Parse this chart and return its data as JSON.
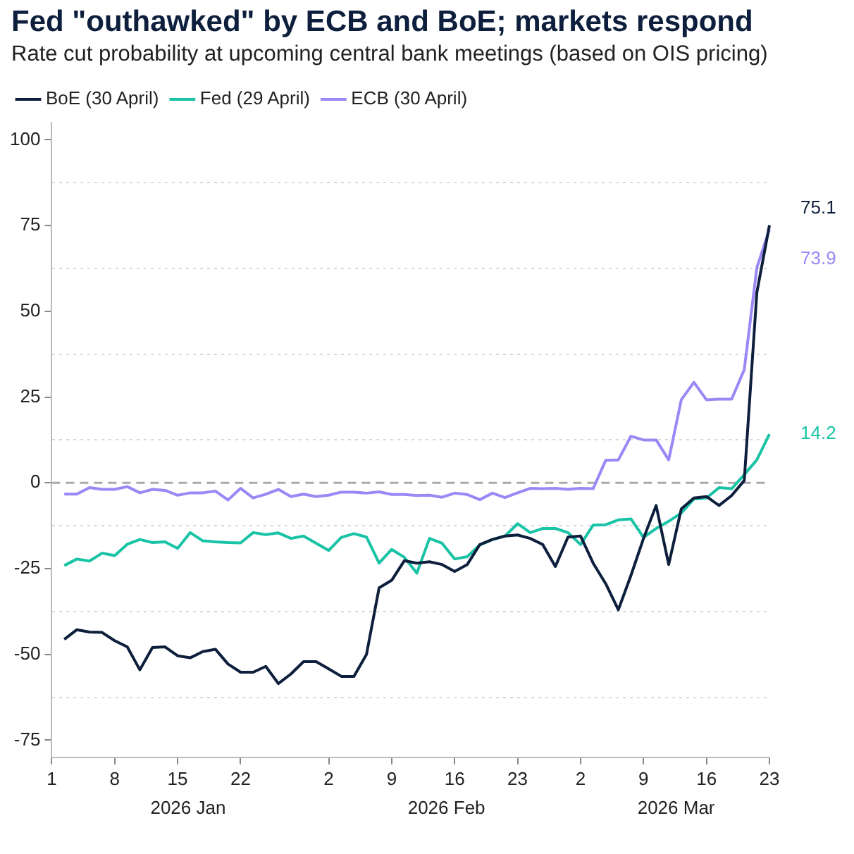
{
  "chart_data": {
    "type": "line",
    "title": "Fed \"outhawked\" by ECB and BoE; markets respond",
    "subtitle": "Rate cut probability at upcoming central bank meetings (based on OIS pricing)",
    "categories": [
      "1",
      null,
      null,
      null,
      null,
      "8",
      null,
      null,
      null,
      null,
      "15",
      null,
      null,
      null,
      null,
      "22",
      null,
      null,
      null,
      null,
      null,
      null,
      "2",
      null,
      null,
      null,
      null,
      "9",
      null,
      null,
      null,
      null,
      "16",
      null,
      null,
      null,
      null,
      "23",
      null,
      null,
      null,
      null,
      "2",
      null,
      null,
      null,
      null,
      "9",
      null,
      null,
      null,
      null,
      "16",
      null,
      null,
      null,
      null,
      "23"
    ],
    "series": [
      {
        "name": "BoE (30 April)",
        "color": "#0d1f3c",
        "values": [
          null,
          -45.6,
          -42.8,
          -43.5,
          -43.6,
          -46,
          -47.8,
          -54.5,
          -48,
          -47.8,
          -50.4,
          -51,
          -49.2,
          -48.5,
          -52.8,
          -55.2,
          -55.2,
          -53.5,
          -58.5,
          -55.7,
          -52.1,
          -52.1,
          -54.2,
          -56.4,
          -56.4,
          -50,
          -30.6,
          -28.4,
          -22.7,
          -23.4,
          -23,
          -23.8,
          -25.8,
          -23.8,
          -18,
          -16.5,
          -15.5,
          -15.2,
          -16.2,
          -18,
          -24.4,
          -15.8,
          -15.5,
          -23.4,
          -29.4,
          -37,
          -27,
          -16.2,
          -6.6,
          -23.8,
          -7.6,
          -4.4,
          -4,
          -6.6,
          -3.7,
          0.7,
          55.5,
          75.1
        ],
        "value_labels": [
          null,
          null,
          null,
          null,
          null,
          null,
          null,
          null,
          null,
          null,
          null,
          null,
          null,
          null,
          null,
          null,
          null,
          null,
          null,
          null,
          null,
          null,
          null,
          null,
          null,
          null,
          null,
          null,
          null,
          null,
          null,
          null,
          null,
          null,
          null,
          null,
          null,
          null,
          null,
          null,
          null,
          null,
          null,
          null,
          null,
          null,
          null,
          null,
          null,
          null,
          null,
          null,
          null,
          null,
          null,
          null,
          null,
          "75.1"
        ]
      },
      {
        "name": "Fed (29 April)",
        "color": "#19c3a5",
        "values": [
          null,
          -24.1,
          -22.2,
          -22.8,
          -20.5,
          -21.2,
          -17.9,
          -16.5,
          -17.4,
          -17.2,
          -19.1,
          -14.5,
          -16.9,
          -17.2,
          -17.4,
          -17.5,
          -14.5,
          -15.1,
          -14.6,
          -16.2,
          -15.5,
          -17.6,
          -19.7,
          -15.9,
          -14.8,
          -15.8,
          -23.4,
          -19.4,
          -21.7,
          -26.3,
          -16.2,
          -17.6,
          -22.2,
          -21.5,
          -18.1,
          -16.5,
          -15.5,
          -11.9,
          -14.5,
          -13.3,
          -13.3,
          -14.5,
          -18,
          -12.3,
          -12.2,
          -10.8,
          -10.5,
          -15.9,
          -13.3,
          -11.2,
          -8.8,
          -4.7,
          -4.4,
          -1.4,
          -1.7,
          2.4,
          6.7,
          14.2
        ],
        "value_labels": [
          null,
          null,
          null,
          null,
          null,
          null,
          null,
          null,
          null,
          null,
          null,
          null,
          null,
          null,
          null,
          null,
          null,
          null,
          null,
          null,
          null,
          null,
          null,
          null,
          null,
          null,
          null,
          null,
          null,
          null,
          null,
          null,
          null,
          null,
          null,
          null,
          null,
          null,
          null,
          null,
          null,
          null,
          null,
          null,
          null,
          null,
          null,
          null,
          null,
          null,
          null,
          null,
          null,
          null,
          null,
          null,
          null,
          "14.2"
        ]
      },
      {
        "name": "ECB (30 April)",
        "color": "#9b87f5",
        "values": [
          null,
          -3.3,
          -3.3,
          -1.4,
          -1.9,
          -1.9,
          -1.1,
          -2.9,
          -1.9,
          -2.2,
          -3.6,
          -2.9,
          -2.9,
          -2.4,
          -5,
          -1.6,
          -4.4,
          -3.3,
          -1.9,
          -4,
          -3.3,
          -4,
          -3.6,
          -2.7,
          -2.7,
          -3,
          -2.6,
          -3.4,
          -3.4,
          -3.7,
          -3.6,
          -4.2,
          -3,
          -3.4,
          -4.9,
          -3,
          -4.3,
          -2.9,
          -1.6,
          -1.7,
          -1.6,
          -1.9,
          -1.6,
          -1.7,
          6.6,
          6.7,
          13.6,
          12.5,
          12.5,
          6.7,
          24.2,
          29.3,
          24.2,
          24.4,
          24.4,
          33,
          62.7,
          73.9
        ],
        "value_labels": [
          null,
          null,
          null,
          null,
          null,
          null,
          null,
          null,
          null,
          null,
          null,
          null,
          null,
          null,
          null,
          null,
          null,
          null,
          null,
          null,
          null,
          null,
          null,
          null,
          null,
          null,
          null,
          null,
          null,
          null,
          null,
          null,
          null,
          null,
          null,
          null,
          null,
          null,
          null,
          null,
          null,
          null,
          null,
          null,
          null,
          null,
          null,
          null,
          null,
          null,
          null,
          null,
          null,
          null,
          null,
          null,
          null,
          "73.9"
        ]
      }
    ],
    "ylim": [
      -80,
      105
    ],
    "yticks": [
      {
        "value": -75,
        "label": "-75"
      },
      {
        "value": -62.5,
        "label": null
      },
      {
        "value": -50,
        "label": "-50"
      },
      {
        "value": -37.5,
        "label": null
      },
      {
        "value": -25,
        "label": "-25"
      },
      {
        "value": -12.5,
        "label": null
      },
      0,
      {
        "value": 12.5,
        "label": null
      },
      25,
      {
        "value": 37.5,
        "label": null
      },
      50,
      {
        "value": 62.5,
        "label": null
      },
      75,
      {
        "value": 87.5,
        "label": null
      },
      100
    ],
    "grid": "y",
    "ref_lines": [
      {
        "axis": "y",
        "value": 0,
        "color": "#aaaaaa",
        "line_style": "dashed"
      }
    ],
    "annotations": [
      "2026 Jan",
      "2026 Feb",
      "2026 Mar"
    ],
    "legend": "top left",
    "marker": "none",
    "line_style": "solid"
  }
}
